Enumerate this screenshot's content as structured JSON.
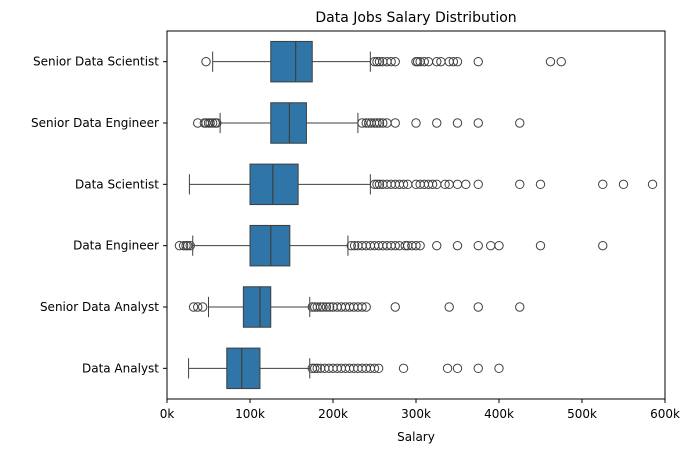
{
  "chart_data": {
    "type": "boxplot",
    "orientation": "horizontal",
    "title": "Data Jobs Salary Distribution",
    "xlabel": "Salary",
    "ylabel": "",
    "xlim": [
      0,
      600000
    ],
    "x_ticks": [
      {
        "value": 0,
        "label": "0k"
      },
      {
        "value": 100000,
        "label": "100k"
      },
      {
        "value": 200000,
        "label": "200k"
      },
      {
        "value": 300000,
        "label": "300k"
      },
      {
        "value": 400000,
        "label": "400k"
      },
      {
        "value": 500000,
        "label": "500k"
      },
      {
        "value": 600000,
        "label": "600k"
      }
    ],
    "grid": false,
    "box_color": "#2f75a8",
    "line_color": "#3f3f3f",
    "categories": [
      "Senior Data Scientist",
      "Senior Data Engineer",
      "Data Scientist",
      "Data Engineer",
      "Senior Data Analyst",
      "Data Analyst"
    ],
    "boxes": [
      {
        "category": "Senior Data Scientist",
        "whisker_low": 55000,
        "q1": 125000,
        "median": 155000,
        "q3": 175000,
        "whisker_high": 245000,
        "outliers": [
          47000,
          250000,
          253000,
          256000,
          260000,
          265000,
          270000,
          275000,
          300000,
          302000,
          305000,
          310000,
          315000,
          325000,
          330000,
          340000,
          345000,
          350000,
          375000,
          462000,
          475000
        ]
      },
      {
        "category": "Senior Data Engineer",
        "whisker_low": 64000,
        "q1": 125000,
        "median": 147500,
        "q3": 168000,
        "whisker_high": 230000,
        "outliers": [
          37000,
          45000,
          47000,
          50000,
          52000,
          55000,
          58000,
          60000,
          235000,
          240000,
          243000,
          246000,
          250000,
          253000,
          256000,
          260000,
          265000,
          275000,
          300000,
          325000,
          350000,
          375000,
          425000
        ]
      },
      {
        "category": "Data Scientist",
        "whisker_low": 27000,
        "q1": 100000,
        "median": 127500,
        "q3": 158000,
        "whisker_high": 245000,
        "outliers": [
          250000,
          253000,
          256000,
          260000,
          265000,
          270000,
          275000,
          280000,
          285000,
          290000,
          300000,
          305000,
          310000,
          315000,
          320000,
          325000,
          335000,
          340000,
          350000,
          360000,
          375000,
          425000,
          450000,
          525000,
          550000,
          585000
        ]
      },
      {
        "category": "Data Engineer",
        "whisker_low": 31000,
        "q1": 100000,
        "median": 125000,
        "q3": 148000,
        "whisker_high": 218000,
        "outliers": [
          15000,
          20000,
          23000,
          25000,
          28000,
          222000,
          226000,
          230000,
          235000,
          240000,
          245000,
          250000,
          255000,
          260000,
          265000,
          270000,
          275000,
          280000,
          287000,
          290000,
          295000,
          300000,
          305000,
          325000,
          350000,
          375000,
          390000,
          400000,
          450000,
          525000
        ]
      },
      {
        "category": "Senior Data Analyst",
        "whisker_low": 50000,
        "q1": 92000,
        "median": 112000,
        "q3": 125000,
        "whisker_high": 172000,
        "outliers": [
          32000,
          37000,
          43000,
          175000,
          178000,
          181000,
          185000,
          188000,
          192000,
          196000,
          200000,
          205000,
          210000,
          215000,
          220000,
          225000,
          230000,
          235000,
          240000,
          275000,
          340000,
          375000,
          425000
        ]
      },
      {
        "category": "Data Analyst",
        "whisker_low": 26000,
        "q1": 72000,
        "median": 90000,
        "q3": 112000,
        "whisker_high": 172000,
        "outliers": [
          175000,
          178000,
          181000,
          185000,
          190000,
          195000,
          200000,
          205000,
          210000,
          215000,
          220000,
          225000,
          230000,
          235000,
          240000,
          245000,
          250000,
          255000,
          285000,
          338000,
          350000,
          375000,
          400000
        ]
      }
    ]
  }
}
